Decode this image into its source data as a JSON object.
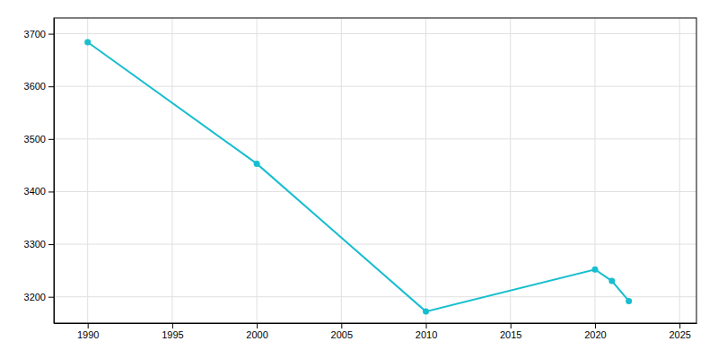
{
  "chart_data": {
    "type": "line",
    "x": [
      1990,
      2000,
      2010,
      2020,
      2021,
      2022
    ],
    "values": [
      3684,
      3453,
      3172,
      3252,
      3230,
      3192
    ],
    "color": "#17BECF",
    "marker": "circle",
    "xlim": [
      1988,
      2026
    ],
    "ylim": [
      3150,
      3730
    ],
    "xticks": [
      1990,
      1995,
      2000,
      2005,
      2010,
      2015,
      2020,
      2025
    ],
    "yticks": [
      3200,
      3300,
      3400,
      3500,
      3600,
      3700
    ],
    "grid": true
  }
}
